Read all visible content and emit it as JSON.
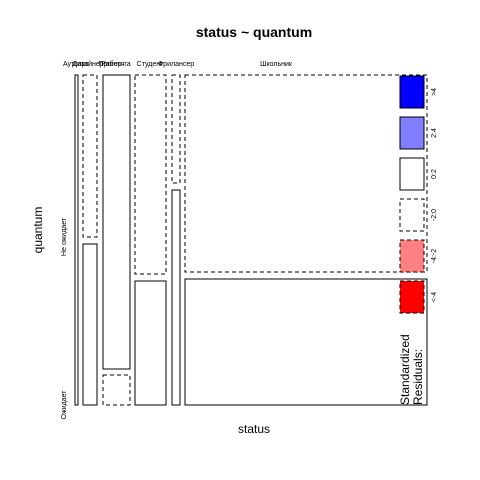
{
  "chart_data": {
    "type": "mosaic",
    "title": "status ~ quantum",
    "xlabel": "status",
    "ylabel": "quantum",
    "x_categories": [
      "Аутсорс",
      "Дизайнер",
      "Прогер",
      "Работяга",
      "Студент",
      "Фрилансер",
      "Школьник"
    ],
    "y_categories": [
      "Ожидает",
      "Не ожидает"
    ],
    "column_widths": [
      0.009,
      0.039,
      0.077,
      0.088,
      0.023,
      0.764
    ],
    "column_names": [
      "Аутсорс",
      "Дизайнер / Прогер",
      "Работяга",
      "Студент",
      "Фрилансер",
      "Школьник"
    ],
    "cells": [
      {
        "column": "Аутсорс",
        "ylevel": "Ожидает",
        "fraction": 1.0,
        "residual_class": "0:2",
        "fill": "#ffffff",
        "dashed": false
      },
      {
        "column": "Аутсорс",
        "ylevel": "Не ожидает",
        "fraction": 0.0,
        "residual_class": "0:2",
        "fill": "#ffffff",
        "dashed": false
      },
      {
        "column": "Дизайнер / Прогер",
        "ylevel": "Ожидает",
        "fraction": 0.49,
        "residual_class": "0:2",
        "fill": "#ffffff",
        "dashed": false
      },
      {
        "column": "Дизайнер / Прогер",
        "ylevel": "Не ожидает",
        "fraction": 0.51,
        "residual_class": "-2:0",
        "fill": "#ffffff",
        "dashed": true
      },
      {
        "column": "Работяга",
        "ylevel": "Ожидает",
        "fraction": 0.09,
        "residual_class": "-2:0",
        "fill": "#ffffff",
        "dashed": true
      },
      {
        "column": "Работяга",
        "ylevel": "Не ожидает",
        "fraction": 0.91,
        "residual_class": "0:2",
        "fill": "#ffffff",
        "dashed": false
      },
      {
        "column": "Студент",
        "ylevel": "Ожидает",
        "fraction": 0.39,
        "residual_class": "0:2",
        "fill": "#ffffff",
        "dashed": false
      },
      {
        "column": "Студент",
        "ylevel": "Не ожидает",
        "fraction": 0.61,
        "residual_class": "-2:0",
        "fill": "#ffffff",
        "dashed": true
      },
      {
        "column": "Фрилансер",
        "ylevel": "Ожидает",
        "fraction": 0.66,
        "residual_class": "0:2",
        "fill": "#ffffff",
        "dashed": false
      },
      {
        "column": "Фрилансер",
        "ylevel": "Не ожидает",
        "fraction": 0.34,
        "residual_class": "-2:0",
        "fill": "#ffffff",
        "dashed": true
      },
      {
        "column": "Школьник",
        "ylevel": "Ожидает",
        "fraction": 0.38,
        "residual_class": "0:2",
        "fill": "#ffffff",
        "dashed": false
      },
      {
        "column": "Школьник",
        "ylevel": "Не ожидает",
        "fraction": 0.62,
        "residual_class": "-2:0",
        "fill": "#ffffff",
        "dashed": true
      }
    ],
    "legend": {
      "title_lines": [
        "Standardized",
        "Residuals:"
      ],
      "placement": "right",
      "entries": [
        {
          "label": ">4",
          "fill": "#0000ff",
          "dashed": false
        },
        {
          "label": "2:4",
          "fill": "#8080ff",
          "dashed": false
        },
        {
          "label": "0:2",
          "fill": "#ffffff",
          "dashed": false
        },
        {
          "label": "-2:0",
          "fill": "#ffffff",
          "dashed": true
        },
        {
          "label": "-4:-2",
          "fill": "#ff8080",
          "dashed": true
        },
        {
          "label": "<-4",
          "fill": "#ff0000",
          "dashed": true
        }
      ]
    }
  }
}
